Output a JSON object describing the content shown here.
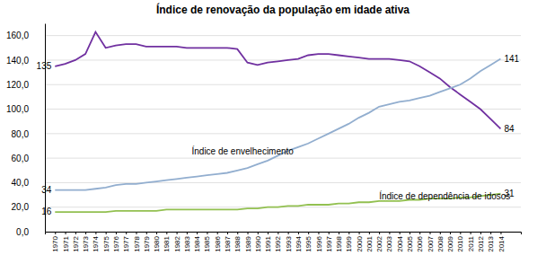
{
  "chart_data": {
    "type": "line",
    "title": "Índice de renovação da população em idade ativa",
    "x": [
      1970,
      1971,
      1972,
      1973,
      1974,
      1975,
      1976,
      1977,
      1978,
      1979,
      1980,
      1981,
      1982,
      1983,
      1984,
      1985,
      1986,
      1987,
      1988,
      1989,
      1990,
      1991,
      1992,
      1993,
      1994,
      1995,
      1996,
      1997,
      1998,
      1999,
      2000,
      2001,
      2002,
      2003,
      2004,
      2005,
      2006,
      2007,
      2008,
      2009,
      2010,
      2011,
      2012,
      2013,
      2014
    ],
    "series": [
      {
        "color": "#7030A0",
        "values": [
          135,
          137,
          140,
          145,
          163,
          150,
          152,
          153,
          153,
          151,
          151,
          151,
          151,
          150,
          150,
          150,
          150,
          150,
          149,
          138,
          136,
          138,
          139,
          140,
          141,
          144,
          145,
          145,
          144,
          143,
          142,
          141,
          141,
          141,
          140,
          139,
          135,
          130,
          125,
          118,
          112,
          106,
          100,
          92,
          84
        ]
      },
      {
        "color": "#92AECF",
        "values": [
          34,
          34,
          34,
          34,
          35,
          36,
          38,
          39,
          39,
          40,
          41,
          42,
          43,
          44,
          45,
          46,
          47,
          48,
          50,
          52,
          55,
          58,
          62,
          66,
          69,
          72,
          76,
          80,
          84,
          88,
          93,
          97,
          102,
          104,
          106,
          107,
          109,
          111,
          114,
          117,
          120,
          125,
          131,
          136,
          141
        ]
      },
      {
        "color": "#92C050",
        "values": [
          16,
          16,
          16,
          16,
          16,
          16,
          17,
          17,
          17,
          17,
          17,
          18,
          18,
          18,
          18,
          18,
          18,
          18,
          18,
          19,
          19,
          20,
          20,
          21,
          21,
          22,
          22,
          22,
          23,
          23,
          24,
          24,
          25,
          25,
          25,
          26,
          26,
          27,
          27,
          27,
          28,
          28,
          29,
          30,
          31
        ]
      }
    ],
    "annotations": [
      {
        "text": "34",
        "x": 1970,
        "y": 34
      },
      {
        "text": "16",
        "x": 1970,
        "y": 16
      },
      {
        "text": "135",
        "x": 1970,
        "y": 135
      },
      {
        "text": "141",
        "x": 2014,
        "y": 141
      },
      {
        "text": "31",
        "x": 2014,
        "y": 31
      },
      {
        "text": "84",
        "x": 2014,
        "y": 84
      },
      {
        "text": "Índice de envelhecimento",
        "x": 1983.5,
        "y": 63
      },
      {
        "text": "Índice de dependência de idosos",
        "x": 2002,
        "y": 26.5
      }
    ],
    "xlim": [
      1969,
      2016
    ],
    "xticks": [
      1970,
      1971,
      1972,
      1973,
      1974,
      1975,
      1976,
      1977,
      1978,
      1979,
      1980,
      1981,
      1982,
      1983,
      1984,
      1985,
      1986,
      1987,
      1988,
      1989,
      1990,
      1991,
      1992,
      1993,
      1994,
      1995,
      1996,
      1997,
      1998,
      1999,
      2000,
      2001,
      2002,
      2003,
      2004,
      2005,
      2006,
      2007,
      2008,
      2009,
      2010,
      2011,
      2012,
      2013,
      2014
    ],
    "ylim": [
      0,
      170
    ],
    "yticks": [
      {
        "value": 0,
        "label": "0,0"
      },
      {
        "value": 20,
        "label": "20,0"
      },
      {
        "value": 40,
        "label": "40,0"
      },
      {
        "value": 60,
        "label": "60,0"
      },
      {
        "value": 80,
        "label": "80,0"
      },
      {
        "value": 100,
        "label": "100,0"
      },
      {
        "value": 120,
        "label": "120,0"
      },
      {
        "value": 140,
        "label": "140,0"
      },
      {
        "value": 160,
        "label": "160,0"
      }
    ],
    "grid": true
  }
}
